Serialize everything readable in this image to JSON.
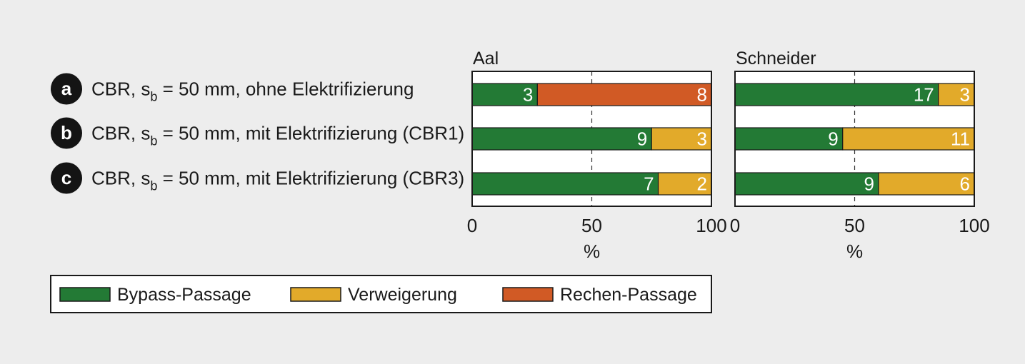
{
  "chart_data": {
    "type": "bar",
    "stacked": "percent",
    "orientation": "horizontal",
    "x_unit": "%",
    "xlim": [
      0,
      100
    ],
    "xticks": [
      "0",
      "50",
      "100"
    ],
    "grid": "dashed line at 50",
    "legend_placement": "bottom",
    "rows": [
      {
        "letter": "a",
        "prefix": "CBR, s",
        "sub": "b",
        "suffix": " = 50 mm, ohne Elektrifizierung"
      },
      {
        "letter": "b",
        "prefix": "CBR, s",
        "sub": "b",
        "suffix": " = 50 mm, mit Elektrifizierung (CBR1)"
      },
      {
        "letter": "c",
        "prefix": "CBR, s",
        "sub": "b",
        "suffix": " = 50 mm, mit Elektrifizierung (CBR3)"
      }
    ],
    "series": [
      {
        "name": "Bypass-Passage",
        "color": "#237a35"
      },
      {
        "name": "Verweigerung",
        "color": "#e2aa2a"
      },
      {
        "name": "Rechen-Passage",
        "color": "#d15a25"
      }
    ],
    "panels": [
      {
        "title": "Aal",
        "rows": [
          {
            "values": [
              3,
              0,
              8
            ]
          },
          {
            "values": [
              9,
              3,
              0
            ]
          },
          {
            "values": [
              7,
              2,
              0
            ]
          }
        ]
      },
      {
        "title": "Schneider",
        "rows": [
          {
            "values": [
              17,
              3,
              0
            ]
          },
          {
            "values": [
              9,
              11,
              0
            ]
          },
          {
            "values": [
              9,
              6,
              0
            ]
          }
        ]
      }
    ]
  }
}
